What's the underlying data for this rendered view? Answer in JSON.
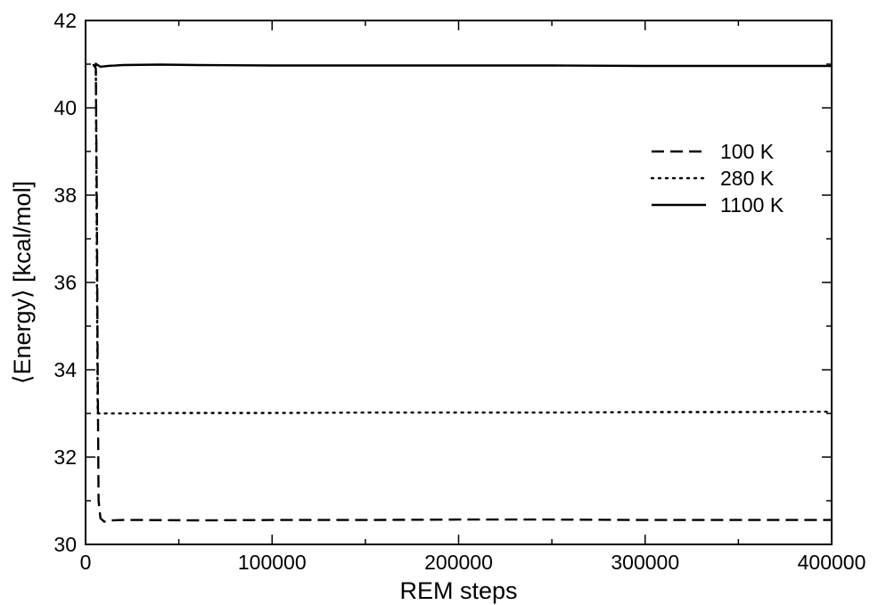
{
  "chart_data": {
    "type": "line",
    "xlabel": "REM steps",
    "ylabel": "⟨Energy⟩ [kcal/mol]",
    "xlim": [
      0,
      400000
    ],
    "ylim": [
      30,
      42
    ],
    "xticks": [
      0,
      100000,
      200000,
      300000,
      400000
    ],
    "xtick_labels": [
      "0",
      "100000",
      "200000",
      "300000",
      "400000"
    ],
    "yticks": [
      30,
      32,
      34,
      36,
      38,
      40,
      42
    ],
    "ytick_labels": [
      "30",
      "32",
      "34",
      "36",
      "38",
      "40",
      "42"
    ],
    "grid": false,
    "legend_position": "top-right",
    "series": [
      {
        "name": "100 K",
        "dash": "dashed",
        "color": "#000000",
        "x": [
          4000,
          5500,
          6000,
          6500,
          7000,
          8000,
          10000,
          14000,
          20000,
          30000,
          60000,
          100000,
          150000,
          200000,
          250000,
          300000,
          350000,
          400000
        ],
        "y": [
          41.0,
          40.9,
          38.0,
          34.0,
          31.0,
          30.6,
          30.52,
          30.55,
          30.56,
          30.56,
          30.55,
          30.56,
          30.56,
          30.57,
          30.57,
          30.56,
          30.56,
          30.56
        ]
      },
      {
        "name": "280 K",
        "dash": "dotted",
        "color": "#000000",
        "x": [
          5500,
          6500,
          10000,
          20000,
          50000,
          100000,
          150000,
          200000,
          250000,
          300000,
          350000,
          400000
        ],
        "y": [
          41.0,
          33.0,
          33.0,
          33.0,
          33.01,
          33.01,
          33.02,
          33.02,
          33.02,
          33.03,
          33.03,
          33.04
        ]
      },
      {
        "name": "1100 K",
        "dash": "solid",
        "color": "#000000",
        "x": [
          5000,
          8000,
          12000,
          20000,
          40000,
          60000,
          100000,
          150000,
          200000,
          250000,
          300000,
          350000,
          400000
        ],
        "y": [
          41.02,
          40.94,
          40.96,
          40.98,
          40.99,
          40.98,
          40.97,
          40.97,
          40.97,
          40.97,
          40.96,
          40.96,
          40.96
        ]
      }
    ]
  }
}
